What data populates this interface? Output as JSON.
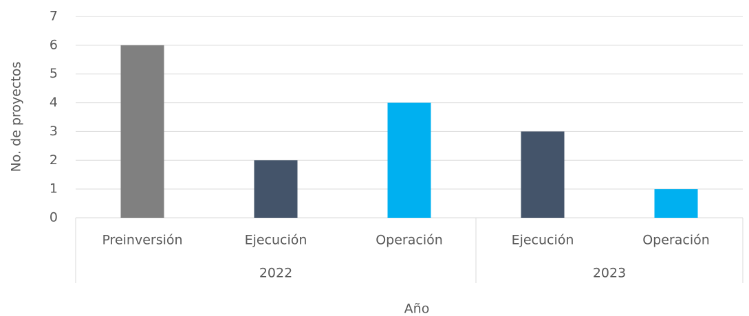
{
  "chart_data": {
    "type": "bar",
    "y_label": "No. de proyectos",
    "x_label": "Año",
    "groups": [
      {
        "name": "2022",
        "categories": [
          "Preinversión",
          "Ejecución",
          "Operación"
        ],
        "values": [
          6,
          2,
          4
        ],
        "colors": [
          "#808080",
          "#44546a",
          "#00b0f0"
        ]
      },
      {
        "name": "2023",
        "categories": [
          "Ejecución",
          "Operación"
        ],
        "values": [
          3,
          1
        ],
        "colors": [
          "#44546a",
          "#00b0f0"
        ]
      }
    ],
    "ylim": [
      0,
      7
    ],
    "yticks": [
      0,
      1,
      2,
      3,
      4,
      5,
      6,
      7
    ],
    "grid": true
  }
}
